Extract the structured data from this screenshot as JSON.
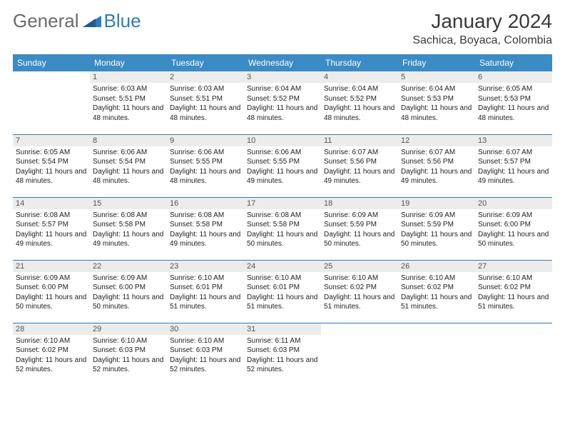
{
  "logo": {
    "part1": "General",
    "part2": "Blue"
  },
  "title": "January 2024",
  "location": "Sachica, Boyaca, Colombia",
  "colors": {
    "header_bg": "#3b8bc5",
    "header_text": "#ffffff",
    "daynum_bg": "#ececec",
    "border": "#2f7bbf",
    "logo_gray": "#6b6b6b",
    "logo_blue": "#2f7bbf",
    "text": "#222222"
  },
  "weekdays": [
    "Sunday",
    "Monday",
    "Tuesday",
    "Wednesday",
    "Thursday",
    "Friday",
    "Saturday"
  ],
  "weeks": [
    [
      null,
      {
        "n": "1",
        "sr": "6:03 AM",
        "ss": "5:51 PM",
        "d": "11 hours and 48 minutes."
      },
      {
        "n": "2",
        "sr": "6:03 AM",
        "ss": "5:51 PM",
        "d": "11 hours and 48 minutes."
      },
      {
        "n": "3",
        "sr": "6:04 AM",
        "ss": "5:52 PM",
        "d": "11 hours and 48 minutes."
      },
      {
        "n": "4",
        "sr": "6:04 AM",
        "ss": "5:52 PM",
        "d": "11 hours and 48 minutes."
      },
      {
        "n": "5",
        "sr": "6:04 AM",
        "ss": "5:53 PM",
        "d": "11 hours and 48 minutes."
      },
      {
        "n": "6",
        "sr": "6:05 AM",
        "ss": "5:53 PM",
        "d": "11 hours and 48 minutes."
      }
    ],
    [
      {
        "n": "7",
        "sr": "6:05 AM",
        "ss": "5:54 PM",
        "d": "11 hours and 48 minutes."
      },
      {
        "n": "8",
        "sr": "6:06 AM",
        "ss": "5:54 PM",
        "d": "11 hours and 48 minutes."
      },
      {
        "n": "9",
        "sr": "6:06 AM",
        "ss": "5:55 PM",
        "d": "11 hours and 48 minutes."
      },
      {
        "n": "10",
        "sr": "6:06 AM",
        "ss": "5:55 PM",
        "d": "11 hours and 49 minutes."
      },
      {
        "n": "11",
        "sr": "6:07 AM",
        "ss": "5:56 PM",
        "d": "11 hours and 49 minutes."
      },
      {
        "n": "12",
        "sr": "6:07 AM",
        "ss": "5:56 PM",
        "d": "11 hours and 49 minutes."
      },
      {
        "n": "13",
        "sr": "6:07 AM",
        "ss": "5:57 PM",
        "d": "11 hours and 49 minutes."
      }
    ],
    [
      {
        "n": "14",
        "sr": "6:08 AM",
        "ss": "5:57 PM",
        "d": "11 hours and 49 minutes."
      },
      {
        "n": "15",
        "sr": "6:08 AM",
        "ss": "5:58 PM",
        "d": "11 hours and 49 minutes."
      },
      {
        "n": "16",
        "sr": "6:08 AM",
        "ss": "5:58 PM",
        "d": "11 hours and 49 minutes."
      },
      {
        "n": "17",
        "sr": "6:08 AM",
        "ss": "5:58 PM",
        "d": "11 hours and 50 minutes."
      },
      {
        "n": "18",
        "sr": "6:09 AM",
        "ss": "5:59 PM",
        "d": "11 hours and 50 minutes."
      },
      {
        "n": "19",
        "sr": "6:09 AM",
        "ss": "5:59 PM",
        "d": "11 hours and 50 minutes."
      },
      {
        "n": "20",
        "sr": "6:09 AM",
        "ss": "6:00 PM",
        "d": "11 hours and 50 minutes."
      }
    ],
    [
      {
        "n": "21",
        "sr": "6:09 AM",
        "ss": "6:00 PM",
        "d": "11 hours and 50 minutes."
      },
      {
        "n": "22",
        "sr": "6:09 AM",
        "ss": "6:00 PM",
        "d": "11 hours and 50 minutes."
      },
      {
        "n": "23",
        "sr": "6:10 AM",
        "ss": "6:01 PM",
        "d": "11 hours and 51 minutes."
      },
      {
        "n": "24",
        "sr": "6:10 AM",
        "ss": "6:01 PM",
        "d": "11 hours and 51 minutes."
      },
      {
        "n": "25",
        "sr": "6:10 AM",
        "ss": "6:02 PM",
        "d": "11 hours and 51 minutes."
      },
      {
        "n": "26",
        "sr": "6:10 AM",
        "ss": "6:02 PM",
        "d": "11 hours and 51 minutes."
      },
      {
        "n": "27",
        "sr": "6:10 AM",
        "ss": "6:02 PM",
        "d": "11 hours and 51 minutes."
      }
    ],
    [
      {
        "n": "28",
        "sr": "6:10 AM",
        "ss": "6:02 PM",
        "d": "11 hours and 52 minutes."
      },
      {
        "n": "29",
        "sr": "6:10 AM",
        "ss": "6:03 PM",
        "d": "11 hours and 52 minutes."
      },
      {
        "n": "30",
        "sr": "6:10 AM",
        "ss": "6:03 PM",
        "d": "11 hours and 52 minutes."
      },
      {
        "n": "31",
        "sr": "6:11 AM",
        "ss": "6:03 PM",
        "d": "11 hours and 52 minutes."
      },
      null,
      null,
      null
    ]
  ],
  "labels": {
    "sunrise": "Sunrise:",
    "sunset": "Sunset:",
    "daylight": "Daylight:"
  }
}
